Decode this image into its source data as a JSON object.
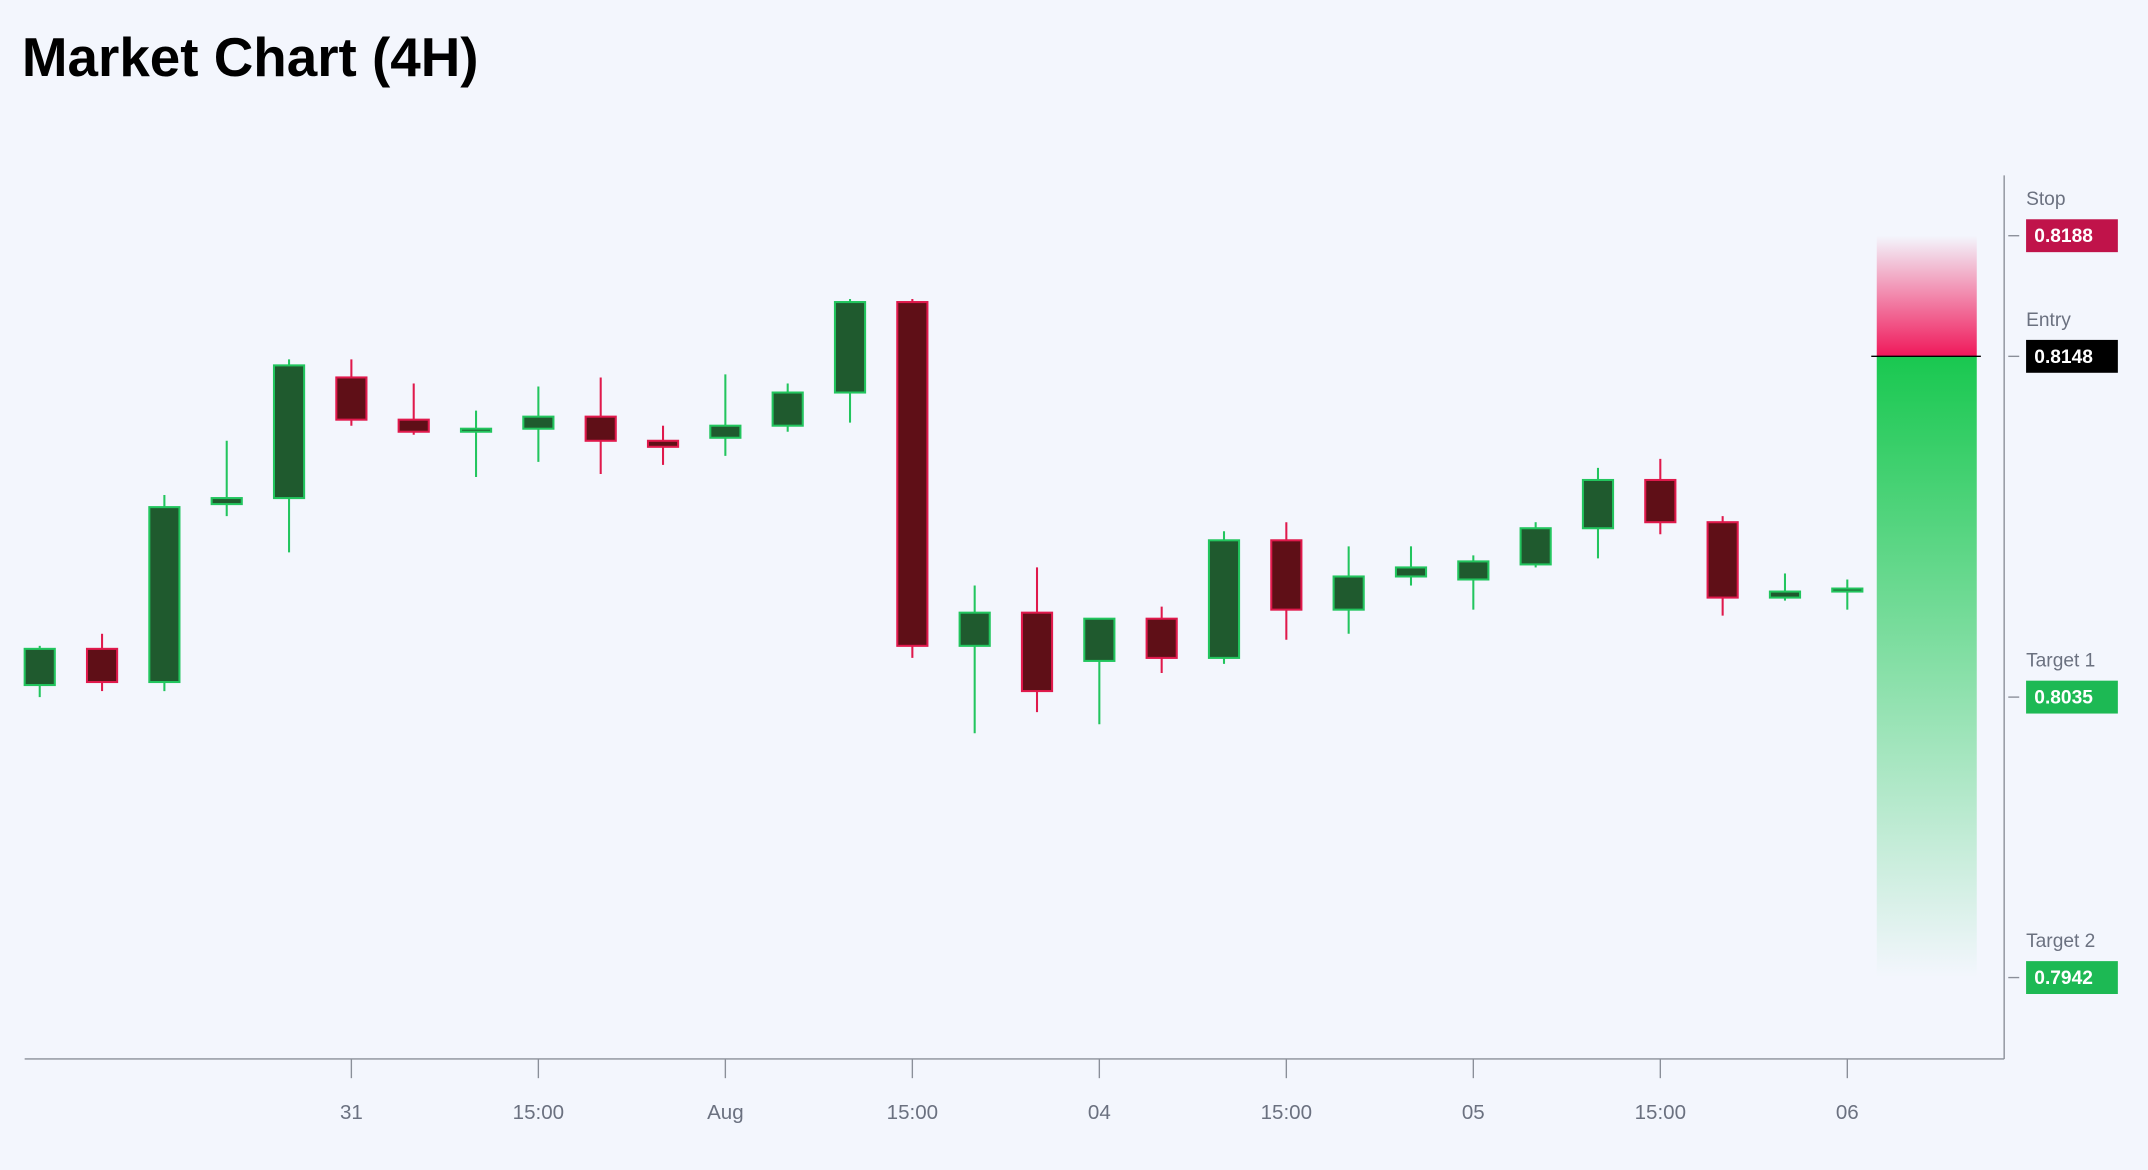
{
  "chart_data": {
    "type": "candlestick",
    "title": "Market Chart (4H)",
    "categories": [
      null,
      null,
      null,
      null,
      null,
      "31",
      null,
      null,
      "15:00",
      null,
      null,
      "Aug",
      null,
      null,
      "15:00",
      null,
      null,
      "04",
      null,
      null,
      "15:00",
      null,
      null,
      "05",
      null,
      null,
      "15:00",
      null,
      null,
      "06"
    ],
    "open": [
      0.8039,
      0.8051,
      0.804,
      0.8099,
      0.8101,
      0.8141,
      0.8127,
      0.8123,
      0.8124,
      0.8128,
      0.812,
      0.8121,
      0.8125,
      0.8136,
      0.8166,
      0.8052,
      0.8063,
      0.8047,
      0.8061,
      0.8048,
      0.8087,
      0.8064,
      0.8075,
      0.8074,
      0.8079,
      0.8091,
      0.8107,
      0.8093,
      0.8068,
      0.807
    ],
    "high": [
      0.8052,
      0.8056,
      0.8102,
      0.812,
      0.8147,
      0.8147,
      0.8139,
      0.813,
      0.8138,
      0.8141,
      0.8125,
      0.8142,
      0.8139,
      0.8167,
      0.8167,
      0.8072,
      0.8078,
      0.8061,
      0.8065,
      0.809,
      0.8093,
      0.8085,
      0.8085,
      0.8082,
      0.8093,
      0.8111,
      0.8114,
      0.8095,
      0.8076,
      0.8074
    ],
    "low": [
      0.8035,
      0.8037,
      0.8037,
      0.8095,
      0.8083,
      0.8125,
      0.8122,
      0.8108,
      0.8113,
      0.8109,
      0.8112,
      0.8115,
      0.8123,
      0.8126,
      0.8048,
      0.8023,
      0.803,
      0.8026,
      0.8043,
      0.8046,
      0.8054,
      0.8056,
      0.8072,
      0.8064,
      0.8078,
      0.8081,
      0.8089,
      0.8062,
      0.8067,
      0.8064
    ],
    "close": [
      0.8051,
      0.804,
      0.8098,
      0.8101,
      0.8145,
      0.8127,
      0.8123,
      0.8124,
      0.8128,
      0.812,
      0.8118,
      0.8125,
      0.8136,
      0.8166,
      0.8052,
      0.8063,
      0.8037,
      0.8061,
      0.8048,
      0.8087,
      0.8064,
      0.8075,
      0.8078,
      0.808,
      0.8091,
      0.8107,
      0.8093,
      0.8068,
      0.807,
      0.8071
    ],
    "up_color": "#22c55e",
    "up_fill": "#1f5a2e",
    "down_color": "#e0194c",
    "down_fill": "#5f0f17",
    "ylim": [
      0.7915,
      0.8208
    ],
    "levels": [
      {
        "name": "Stop",
        "value": 0.8188,
        "color": "#c0134a"
      },
      {
        "name": "Entry",
        "value": 0.8148,
        "color": "#000000"
      },
      {
        "name": "Target 1",
        "value": 0.8035,
        "color": "#1db954"
      },
      {
        "name": "Target 2",
        "value": 0.7942,
        "color": "#1db954"
      }
    ]
  }
}
